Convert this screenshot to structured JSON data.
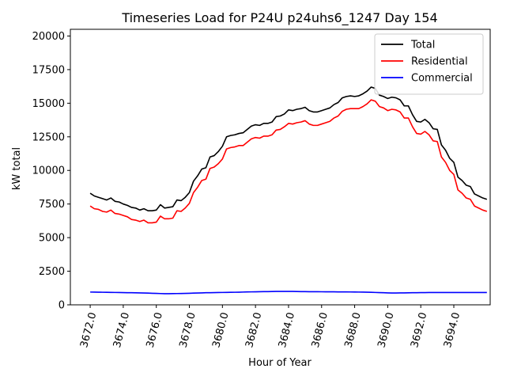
{
  "chart_data": {
    "type": "line",
    "title": "Timeseries Load for P24U p24uhs6_1247  Day 154",
    "xlabel": "Hour of Year",
    "ylabel": "kW total",
    "xlim": [
      3670.8,
      3696.2
    ],
    "ylim": [
      0,
      20500
    ],
    "x_ticks": [
      3672.0,
      3674.0,
      3676.0,
      3678.0,
      3680.0,
      3682.0,
      3684.0,
      3686.0,
      3688.0,
      3690.0,
      3692.0,
      3694.0
    ],
    "x_tick_labels": [
      "3672.0",
      "3674.0",
      "3676.0",
      "3678.0",
      "3680.0",
      "3682.0",
      "3684.0",
      "3686.0",
      "3688.0",
      "3690.0",
      "3692.0",
      "3694.0"
    ],
    "y_ticks": [
      0,
      2500,
      5000,
      7500,
      10000,
      12500,
      15000,
      17500,
      20000
    ],
    "y_tick_labels": [
      "0",
      "2500",
      "5000",
      "7500",
      "10000",
      "12500",
      "15000",
      "17500",
      "20000"
    ],
    "grid": false,
    "legend_position": "top-right",
    "x_start": 3672.0,
    "x_step": 0.25,
    "series": [
      {
        "name": "Total",
        "color": "#000000",
        "values": [
          8300,
          8100,
          8000,
          7900,
          7800,
          7950,
          7700,
          7650,
          7500,
          7400,
          7250,
          7200,
          7050,
          7150,
          7000,
          7000,
          7050,
          7450,
          7200,
          7250,
          7300,
          7800,
          7750,
          8000,
          8350,
          9200,
          9600,
          10100,
          10200,
          11000,
          11100,
          11400,
          11800,
          12500,
          12600,
          12650,
          12750,
          12800,
          13050,
          13300,
          13400,
          13350,
          13500,
          13500,
          13600,
          14000,
          14050,
          14200,
          14500,
          14450,
          14550,
          14600,
          14700,
          14450,
          14350,
          14350,
          14450,
          14550,
          14650,
          14900,
          15050,
          15400,
          15500,
          15550,
          15500,
          15550,
          15700,
          15900,
          16200,
          16100,
          15600,
          15500,
          15350,
          15450,
          15400,
          15250,
          14800,
          14800,
          14150,
          13650,
          13600,
          13800,
          13550,
          13100,
          13050,
          11900,
          11500,
          10900,
          10600,
          9500,
          9250,
          8900,
          8800,
          8250,
          8100,
          7950,
          7850
        ]
      },
      {
        "name": "Residential",
        "color": "#ff0000",
        "values": [
          7350,
          7150,
          7100,
          6950,
          6900,
          7050,
          6800,
          6750,
          6650,
          6550,
          6350,
          6300,
          6200,
          6300,
          6100,
          6100,
          6150,
          6600,
          6400,
          6400,
          6450,
          7000,
          6950,
          7200,
          7550,
          8350,
          8750,
          9250,
          9350,
          10150,
          10250,
          10500,
          10850,
          11600,
          11700,
          11750,
          11850,
          11850,
          12100,
          12350,
          12450,
          12400,
          12550,
          12550,
          12650,
          13000,
          13050,
          13250,
          13500,
          13450,
          13550,
          13600,
          13700,
          13450,
          13350,
          13350,
          13450,
          13550,
          13650,
          13900,
          14050,
          14400,
          14550,
          14600,
          14600,
          14600,
          14750,
          14950,
          15250,
          15150,
          14750,
          14650,
          14450,
          14550,
          14500,
          14350,
          13900,
          13900,
          13250,
          12750,
          12700,
          12900,
          12650,
          12200,
          12150,
          11000,
          10600,
          10000,
          9700,
          8550,
          8300,
          7950,
          7850,
          7350,
          7200,
          7050,
          6950
        ]
      },
      {
        "name": "Commercial",
        "color": "#0000ff",
        "values": [
          950,
          945,
          940,
          935,
          930,
          925,
          920,
          915,
          910,
          905,
          900,
          895,
          890,
          880,
          870,
          860,
          850,
          840,
          830,
          830,
          835,
          840,
          845,
          850,
          860,
          870,
          880,
          890,
          900,
          905,
          910,
          915,
          920,
          925,
          930,
          935,
          940,
          950,
          960,
          965,
          970,
          975,
          980,
          985,
          990,
          995,
          1000,
          1000,
          1000,
          995,
          990,
          985,
          980,
          978,
          976,
          974,
          972,
          970,
          968,
          966,
          964,
          962,
          960,
          958,
          955,
          950,
          945,
          940,
          930,
          920,
          910,
          900,
          890,
          880,
          880,
          885,
          890,
          895,
          900,
          905,
          910,
          912,
          914,
          915,
          915,
          915,
          915,
          915,
          915,
          915,
          915,
          915,
          915,
          915,
          915,
          915,
          915
        ]
      }
    ]
  }
}
